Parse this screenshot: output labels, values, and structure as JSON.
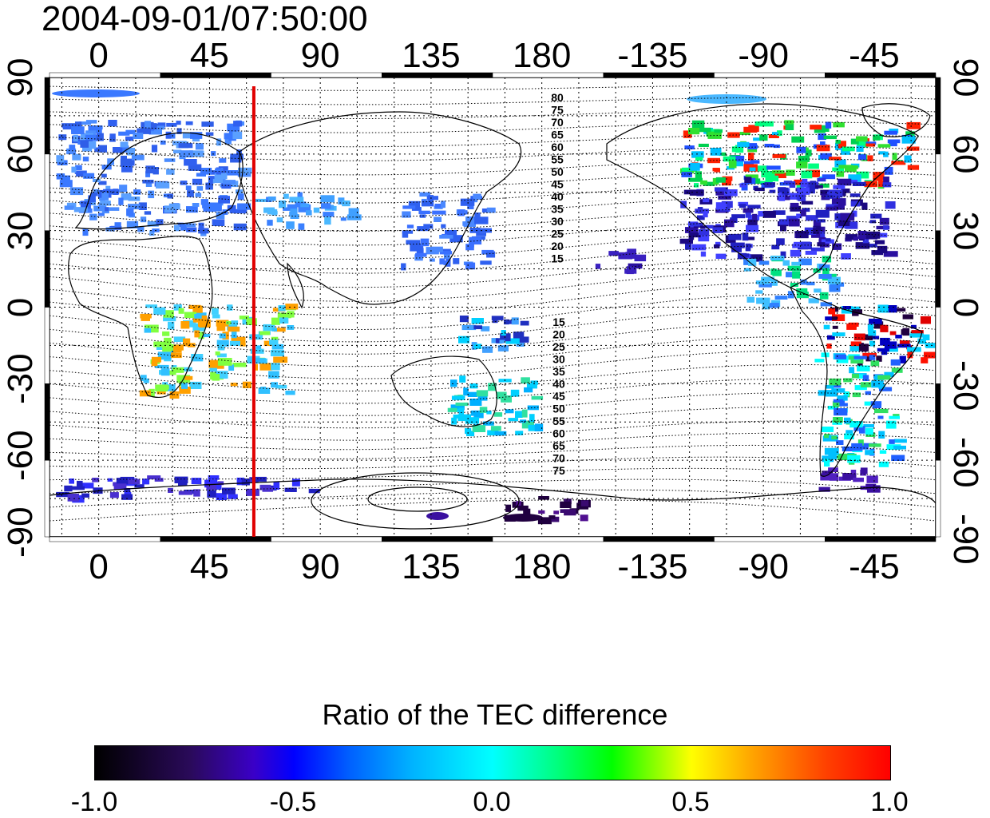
{
  "timestamp": "2004-09-01/07:50:00",
  "lon_ticks_top": [
    "0",
    "45",
    "90",
    "135",
    "180",
    "-135",
    "-90",
    "-45"
  ],
  "lon_ticks_bottom": [
    "0",
    "45",
    "90",
    "135",
    "180",
    "-135",
    "-90",
    "-45"
  ],
  "lat_ticks_left": [
    "90",
    "60",
    "30",
    "0",
    "-30",
    "-60",
    "-90"
  ],
  "lat_ticks_right": [
    "90",
    "60",
    "30",
    "0",
    "-30",
    "-60",
    "-90"
  ],
  "contour_labels_north": [
    "80",
    "75",
    "70",
    "65",
    "60",
    "55",
    "50",
    "45",
    "40",
    "35",
    "30",
    "25",
    "20",
    "15"
  ],
  "contour_labels_south": [
    "15",
    "20",
    "25",
    "30",
    "35",
    "40",
    "45",
    "50",
    "55",
    "60",
    "65",
    "70",
    "75"
  ],
  "colorbar": {
    "title": "Ratio of the TEC difference",
    "labels": [
      "-1.0",
      "-0.5",
      "0.0",
      "0.5",
      "1.0"
    ],
    "range": [
      -1.0,
      1.0
    ]
  },
  "marker_line": {
    "longitude": 63,
    "color": "#e00000"
  },
  "map": {
    "lon_range": [
      -20,
      340
    ],
    "lat_range": [
      -90,
      90
    ],
    "grid_lon_step": 15,
    "grid_lat_step": 15
  }
}
